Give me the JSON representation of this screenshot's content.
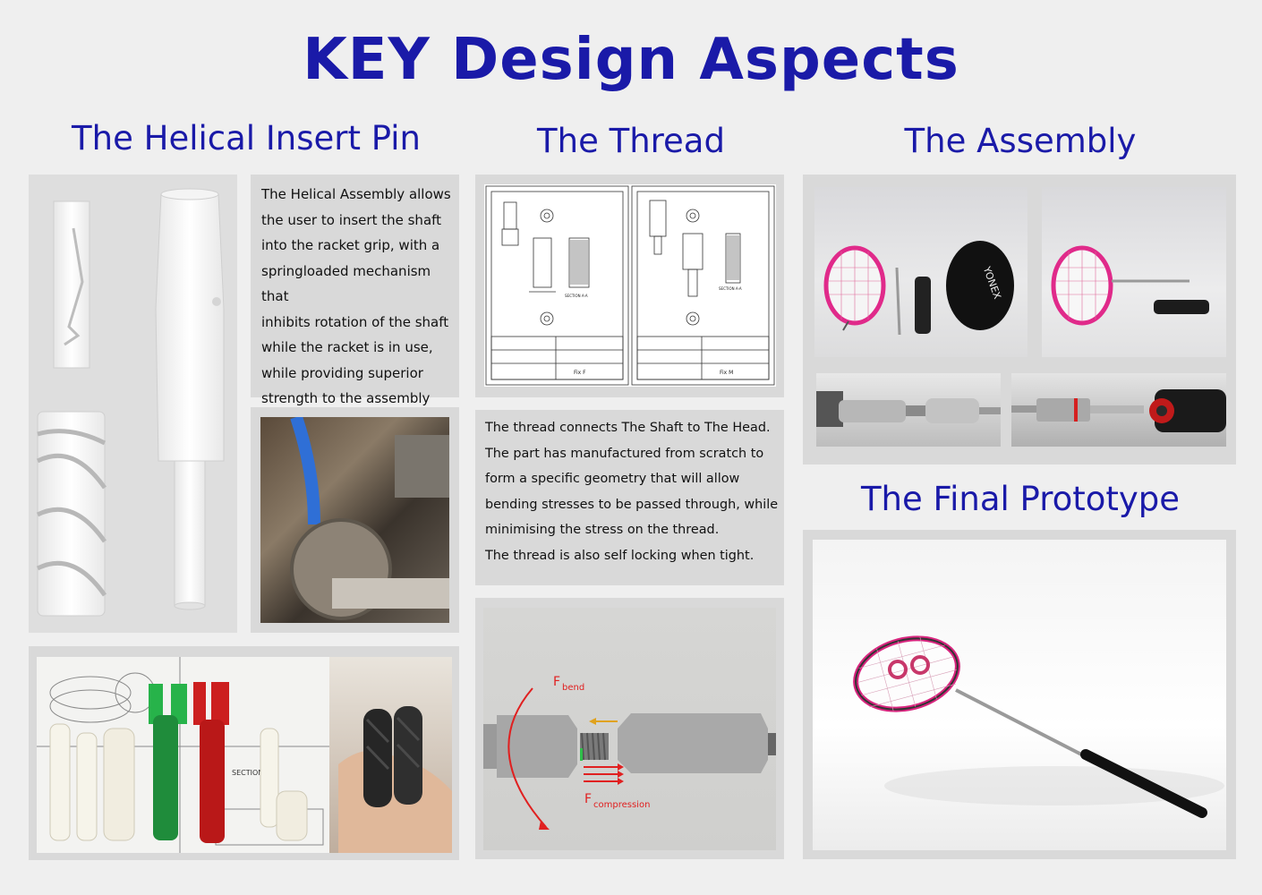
{
  "title": "KEY Design Aspects",
  "sections": {
    "helical": {
      "heading": "The Helical Insert Pin",
      "text_lines": [
        "The Helical Assembly allows",
        "the user to insert the shaft",
        "into the racket grip, with a",
        "springloaded mechanism that",
        "inhibits rotation of the shaft",
        "while the racket is in use,",
        "while providing superior",
        "strength to the assembly"
      ],
      "drawing_label": "SECTION A-A"
    },
    "thread": {
      "heading": "The Thread",
      "text_lines": [
        "The thread connects The Shaft to The Head.",
        "The part has manufactured from scratch to",
        "form a specific geometry that will allow",
        "bending stresses to be passed through, while",
        "minimising the stress on the thread.",
        "The thread is also self locking when tight."
      ],
      "drawing": {
        "left_title": "Fix F",
        "right_title": "Fix M",
        "section_label": "SECTION A-A"
      },
      "force_labels": {
        "bend_main": "F",
        "bend_sub": "bend",
        "compression_main": "F",
        "compression_sub": "compression"
      }
    },
    "assembly": {
      "heading": "The Assembly",
      "cover_text": "YONEX"
    },
    "final": {
      "heading": "The Final Prototype"
    }
  },
  "colors": {
    "heading": "#1a1aa8",
    "panel": "#d9d9d9",
    "background": "#efefef",
    "force_arrow": "#e02020"
  }
}
